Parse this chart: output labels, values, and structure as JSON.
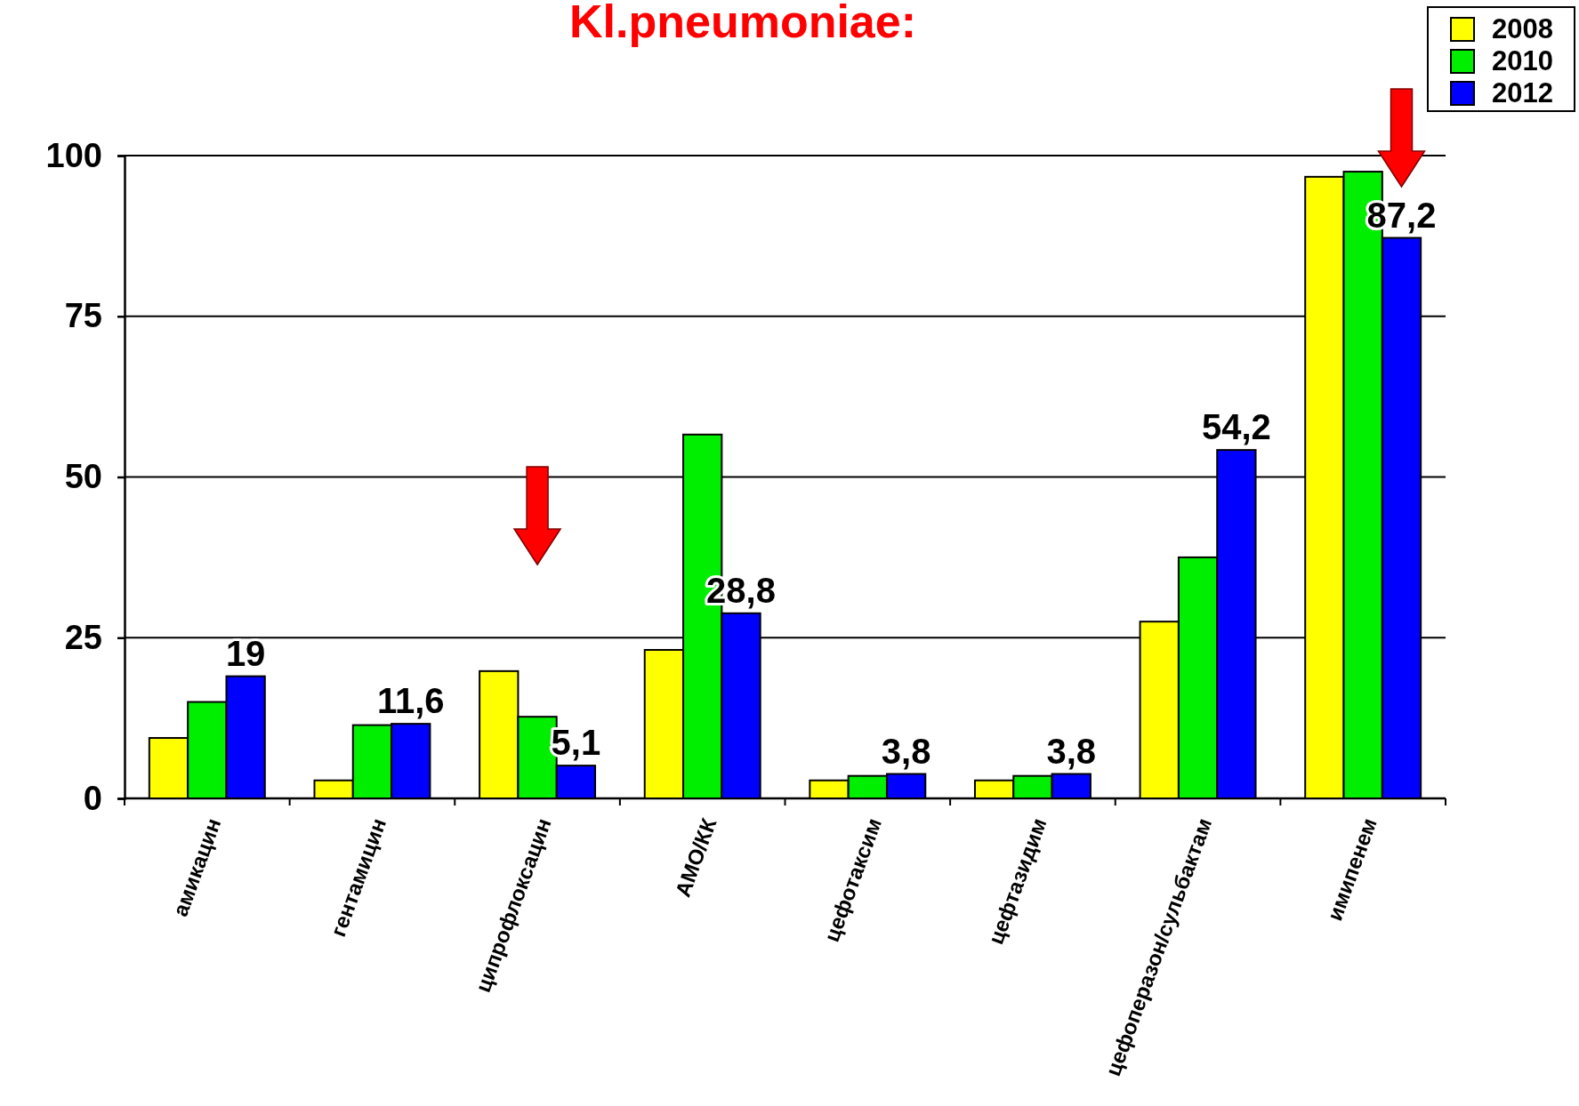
{
  "chart_data": {
    "type": "bar",
    "title": "Kl.pneumoniae:",
    "categories": [
      "амикацин",
      "гентамицин",
      "ципрофлоксацин",
      "АМО/КК",
      "цефотаксим",
      "цефтазидим",
      "цефоперазон/сульбактам",
      "имипенем"
    ],
    "series": [
      {
        "name": "2008",
        "color": "#ffff00",
        "values": [
          9.4,
          2.8,
          19.8,
          23.1,
          2.8,
          2.8,
          27.5,
          96.7
        ]
      },
      {
        "name": "2010",
        "color": "#00ee00",
        "values": [
          15,
          11.4,
          12.7,
          56.6,
          3.5,
          3.5,
          37.5,
          97.5
        ]
      },
      {
        "name": "2012",
        "color": "#0000ff",
        "values": [
          19,
          11.6,
          5.1,
          28.8,
          3.8,
          3.8,
          54.2,
          87.2
        ],
        "value_labels": [
          "19",
          "11,6",
          "5,1",
          "28,8",
          "3,8",
          "3,8",
          "54,2",
          "87,2"
        ]
      }
    ],
    "ylim": [
      0,
      100
    ],
    "yticks": [
      0,
      25,
      50,
      75,
      100
    ],
    "grid": "y",
    "legend": "top right"
  }
}
